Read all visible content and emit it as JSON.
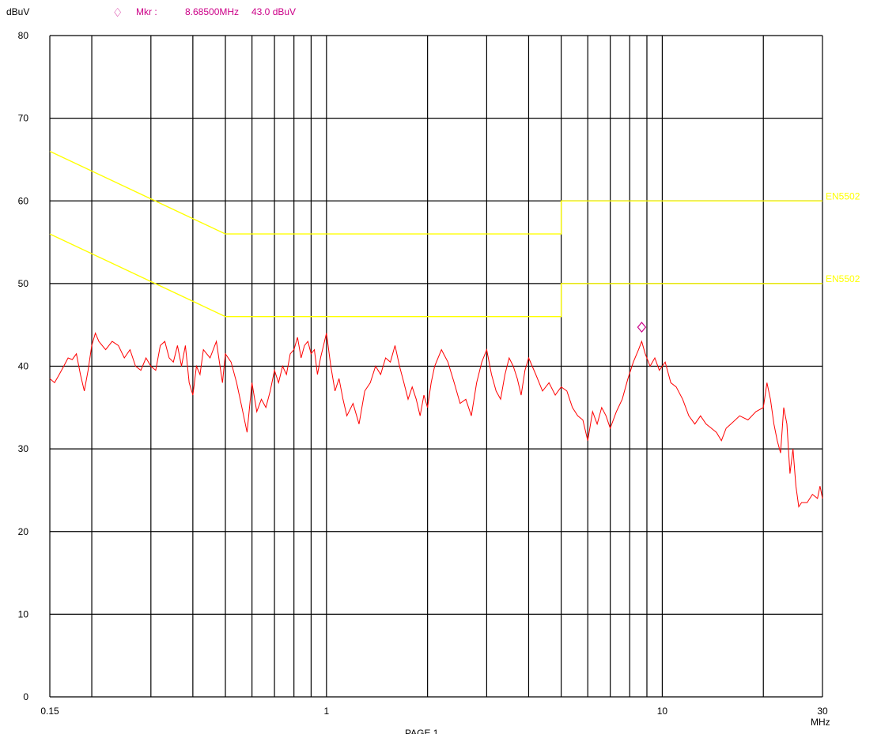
{
  "chart_data": {
    "type": "line",
    "title": "",
    "xlabel": "",
    "ylabel": "dBuV",
    "x_unit": "MHz",
    "x_scale": "log",
    "xlim": [
      0.15,
      30
    ],
    "ylim": [
      0,
      80
    ],
    "grid": true,
    "y_ticks": [
      {
        "value": 0,
        "label": "0"
      },
      {
        "value": 10,
        "label": "10"
      },
      {
        "value": 20,
        "label": "20"
      },
      {
        "value": 30,
        "label": "30"
      },
      {
        "value": 40,
        "label": "40"
      },
      {
        "value": 50,
        "label": "50"
      },
      {
        "value": 60,
        "label": "60"
      },
      {
        "value": 70,
        "label": "70"
      },
      {
        "value": 80,
        "label": "80"
      }
    ],
    "x_ticks": [
      {
        "value": 0.15,
        "label": "0.15"
      },
      {
        "value": 1,
        "label": "1"
      },
      {
        "value": 10,
        "label": "10"
      },
      {
        "value": 30,
        "label": "30"
      }
    ],
    "x_gridlines": [
      0.15,
      0.2,
      0.3,
      0.4,
      0.5,
      0.6,
      0.7,
      0.8,
      0.9,
      1,
      2,
      3,
      4,
      5,
      6,
      7,
      8,
      9,
      10,
      20,
      30
    ],
    "marker": {
      "label": "Mkr :",
      "frequency_text": "8.68500MHz",
      "level_text": "43.0 dBuV",
      "x": 8.685,
      "y": 43.0,
      "color": "#cc0088"
    },
    "limit_lines": [
      {
        "label": "EN5502",
        "color": "#ffff00",
        "points": [
          [
            0.15,
            66
          ],
          [
            0.5,
            56
          ],
          [
            5,
            56
          ],
          [
            5,
            60
          ],
          [
            30,
            60
          ]
        ]
      },
      {
        "label": "EN5502",
        "color": "#ffff00",
        "points": [
          [
            0.15,
            56
          ],
          [
            0.5,
            46
          ],
          [
            5,
            46
          ],
          [
            5,
            50
          ],
          [
            30,
            50
          ]
        ]
      }
    ],
    "series": [
      {
        "color": "#ff0000",
        "points": [
          [
            0.15,
            38.5
          ],
          [
            0.155,
            38.0
          ],
          [
            0.16,
            39.0
          ],
          [
            0.165,
            40.0
          ],
          [
            0.17,
            41.0
          ],
          [
            0.175,
            40.8
          ],
          [
            0.18,
            41.5
          ],
          [
            0.185,
            39.0
          ],
          [
            0.19,
            37.0
          ],
          [
            0.195,
            39.5
          ],
          [
            0.2,
            42.5
          ],
          [
            0.205,
            44.0
          ],
          [
            0.21,
            43.0
          ],
          [
            0.22,
            42.0
          ],
          [
            0.23,
            43.0
          ],
          [
            0.24,
            42.5
          ],
          [
            0.25,
            41.0
          ],
          [
            0.26,
            42.0
          ],
          [
            0.27,
            40.0
          ],
          [
            0.28,
            39.5
          ],
          [
            0.29,
            41.0
          ],
          [
            0.3,
            40.0
          ],
          [
            0.31,
            39.5
          ],
          [
            0.32,
            42.5
          ],
          [
            0.33,
            43.0
          ],
          [
            0.34,
            41.0
          ],
          [
            0.35,
            40.5
          ],
          [
            0.36,
            42.5
          ],
          [
            0.37,
            40.0
          ],
          [
            0.38,
            42.5
          ],
          [
            0.39,
            38.0
          ],
          [
            0.4,
            36.5
          ],
          [
            0.41,
            40.0
          ],
          [
            0.42,
            39.0
          ],
          [
            0.43,
            42.0
          ],
          [
            0.45,
            41.0
          ],
          [
            0.47,
            43.0
          ],
          [
            0.49,
            38.0
          ],
          [
            0.5,
            41.5
          ],
          [
            0.52,
            40.5
          ],
          [
            0.54,
            38.0
          ],
          [
            0.56,
            35.0
          ],
          [
            0.58,
            32.0
          ],
          [
            0.6,
            38.0
          ],
          [
            0.62,
            34.5
          ],
          [
            0.64,
            36.0
          ],
          [
            0.66,
            35.0
          ],
          [
            0.68,
            37.0
          ],
          [
            0.7,
            39.5
          ],
          [
            0.72,
            38.0
          ],
          [
            0.74,
            40.0
          ],
          [
            0.76,
            39.0
          ],
          [
            0.78,
            41.5
          ],
          [
            0.8,
            42.0
          ],
          [
            0.82,
            43.5
          ],
          [
            0.84,
            41.0
          ],
          [
            0.86,
            42.5
          ],
          [
            0.88,
            43.0
          ],
          [
            0.9,
            41.5
          ],
          [
            0.92,
            42.0
          ],
          [
            0.94,
            39.0
          ],
          [
            0.96,
            41.0
          ],
          [
            0.98,
            42.5
          ],
          [
            1.0,
            44.0
          ],
          [
            1.03,
            40.0
          ],
          [
            1.06,
            37.0
          ],
          [
            1.09,
            38.5
          ],
          [
            1.12,
            36.0
          ],
          [
            1.15,
            34.0
          ],
          [
            1.2,
            35.5
          ],
          [
            1.25,
            33.0
          ],
          [
            1.3,
            37.0
          ],
          [
            1.35,
            38.0
          ],
          [
            1.4,
            40.0
          ],
          [
            1.45,
            39.0
          ],
          [
            1.5,
            41.0
          ],
          [
            1.55,
            40.5
          ],
          [
            1.6,
            42.5
          ],
          [
            1.65,
            40.0
          ],
          [
            1.7,
            38.0
          ],
          [
            1.75,
            36.0
          ],
          [
            1.8,
            37.5
          ],
          [
            1.85,
            36.0
          ],
          [
            1.9,
            34.0
          ],
          [
            1.95,
            36.5
          ],
          [
            2.0,
            35.0
          ],
          [
            2.05,
            38.0
          ],
          [
            2.1,
            40.0
          ],
          [
            2.2,
            42.0
          ],
          [
            2.3,
            40.5
          ],
          [
            2.4,
            38.0
          ],
          [
            2.5,
            35.5
          ],
          [
            2.6,
            36.0
          ],
          [
            2.7,
            34.0
          ],
          [
            2.8,
            38.0
          ],
          [
            2.9,
            40.5
          ],
          [
            3.0,
            42.0
          ],
          [
            3.1,
            39.0
          ],
          [
            3.2,
            37.0
          ],
          [
            3.3,
            36.0
          ],
          [
            3.4,
            39.0
          ],
          [
            3.5,
            41.0
          ],
          [
            3.6,
            40.0
          ],
          [
            3.7,
            38.5
          ],
          [
            3.8,
            36.5
          ],
          [
            3.9,
            39.5
          ],
          [
            4.0,
            41.0
          ],
          [
            4.2,
            39.0
          ],
          [
            4.4,
            37.0
          ],
          [
            4.6,
            38.0
          ],
          [
            4.8,
            36.5
          ],
          [
            5.0,
            37.5
          ],
          [
            5.2,
            37.0
          ],
          [
            5.4,
            35.0
          ],
          [
            5.6,
            34.0
          ],
          [
            5.8,
            33.5
          ],
          [
            6.0,
            31.0
          ],
          [
            6.2,
            34.5
          ],
          [
            6.4,
            33.0
          ],
          [
            6.6,
            35.0
          ],
          [
            6.8,
            34.0
          ],
          [
            7.0,
            32.5
          ],
          [
            7.3,
            34.5
          ],
          [
            7.6,
            36.0
          ],
          [
            7.9,
            38.5
          ],
          [
            8.2,
            40.5
          ],
          [
            8.5,
            42.0
          ],
          [
            8.685,
            43.0
          ],
          [
            8.9,
            41.5
          ],
          [
            9.2,
            40.0
          ],
          [
            9.5,
            41.0
          ],
          [
            9.8,
            39.5
          ],
          [
            10.2,
            40.5
          ],
          [
            10.6,
            38.0
          ],
          [
            11.0,
            37.5
          ],
          [
            11.5,
            36.0
          ],
          [
            12.0,
            34.0
          ],
          [
            12.5,
            33.0
          ],
          [
            13.0,
            34.0
          ],
          [
            13.5,
            33.0
          ],
          [
            14.0,
            32.5
          ],
          [
            14.5,
            32.0
          ],
          [
            15.0,
            31.0
          ],
          [
            15.5,
            32.5
          ],
          [
            16.0,
            33.0
          ],
          [
            17.0,
            34.0
          ],
          [
            18.0,
            33.5
          ],
          [
            19.0,
            34.5
          ],
          [
            20.0,
            35.0
          ],
          [
            20.5,
            38.0
          ],
          [
            21.0,
            36.0
          ],
          [
            21.5,
            33.0
          ],
          [
            22.0,
            31.0
          ],
          [
            22.5,
            29.5
          ],
          [
            23.0,
            35.0
          ],
          [
            23.5,
            33.0
          ],
          [
            24.0,
            27.0
          ],
          [
            24.5,
            30.0
          ],
          [
            25.0,
            25.5
          ],
          [
            25.5,
            23.0
          ],
          [
            26.0,
            23.5
          ],
          [
            27.0,
            23.5
          ],
          [
            28.0,
            24.5
          ],
          [
            29.0,
            24.0
          ],
          [
            29.5,
            25.5
          ],
          [
            30.0,
            24.0
          ]
        ]
      }
    ],
    "footer": "PAGE 1"
  }
}
